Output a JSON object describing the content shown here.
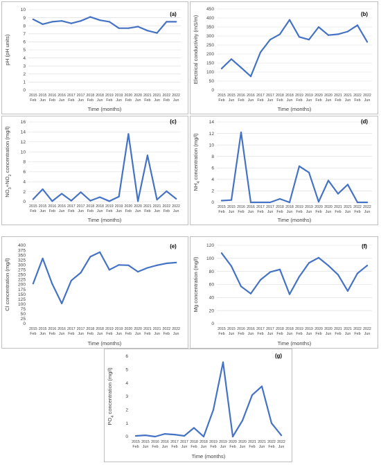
{
  "colors": {
    "series": "#4472c4",
    "grid": "#d9d9d9",
    "border": "#bfbfbf"
  },
  "time_labels": [
    [
      "2015",
      "Feb"
    ],
    [
      "2015",
      "Jun"
    ],
    [
      "2016",
      "Feb"
    ],
    [
      "2016",
      "Jun"
    ],
    [
      "2017",
      "Feb"
    ],
    [
      "2017",
      "Jun"
    ],
    [
      "2018",
      "Feb"
    ],
    [
      "2018",
      "Jun"
    ],
    [
      "2019",
      "Feb"
    ],
    [
      "2019",
      "Jun"
    ],
    [
      "2020",
      "Feb"
    ],
    [
      "2020",
      "Jun"
    ],
    [
      "2021",
      "Feb"
    ],
    [
      "2021",
      "Jun"
    ],
    [
      "2022",
      "Feb"
    ],
    [
      "2022",
      "Jun"
    ]
  ],
  "chart_data": [
    {
      "id": "a",
      "panel_label": "(a)",
      "type": "line",
      "xlabel": "Time (months)",
      "ylabel": "pH (pH units)",
      "ylim": [
        0,
        10
      ],
      "yticks": [
        0,
        1,
        2,
        3,
        4,
        5,
        6,
        7,
        8,
        9,
        10
      ],
      "grid": true,
      "x": [
        "2015 Feb",
        "2015 Jun",
        "2016 Feb",
        "2016 Jun",
        "2017 Feb",
        "2017 Jun",
        "2018 Feb",
        "2018 Jun",
        "2019 Feb",
        "2019 Jun",
        "2020 Feb",
        "2020 Jun",
        "2021 Feb",
        "2021 Jun",
        "2022 Feb",
        "2022 Jun"
      ],
      "values": [
        8.8,
        8.2,
        8.5,
        8.6,
        8.3,
        8.6,
        9.1,
        8.7,
        8.5,
        7.7,
        7.7,
        7.9,
        7.4,
        7.1,
        8.5,
        8.5
      ]
    },
    {
      "id": "b",
      "panel_label": "(b)",
      "type": "line",
      "xlabel": "Time (months)",
      "ylabel": "Electrical conductivity (mS/m)",
      "ylim": [
        0,
        450
      ],
      "yticks": [
        0,
        50,
        100,
        150,
        200,
        250,
        300,
        350,
        400,
        450
      ],
      "grid": true,
      "x": [
        "2015 Feb",
        "2015 Jun",
        "2016 Feb",
        "2016 Jun",
        "2017 Feb",
        "2017 Jun",
        "2018 Feb",
        "2018 Jun",
        "2019 Feb",
        "2019 Jun",
        "2020 Feb",
        "2020 Jun",
        "2021 Feb",
        "2021 Jun",
        "2022 Feb",
        "2022 Jun"
      ],
      "values": [
        120,
        172,
        125,
        76,
        210,
        280,
        310,
        390,
        295,
        280,
        350,
        305,
        310,
        325,
        360,
        268
      ]
    },
    {
      "id": "c",
      "panel_label": "(c)",
      "type": "line",
      "xlabel": "Time (months)",
      "ylabel": "NO3+NO2 concentration (mg/l)",
      "ylim": [
        0,
        16
      ],
      "yticks": [
        0,
        2,
        4,
        6,
        8,
        10,
        12,
        14,
        16
      ],
      "grid": true,
      "x": [
        "2015 Feb",
        "2015 Jun",
        "2016 Feb",
        "2016 Jun",
        "2017 Feb",
        "2017 Jun",
        "2018 Feb",
        "2018 Jun",
        "2019 Feb",
        "2019 Jun",
        "2020 Feb",
        "2020 Jun",
        "2021 Feb",
        "2021 Jun",
        "2022 Feb",
        "2022 Jun"
      ],
      "values": [
        0.5,
        2.5,
        0.1,
        1.6,
        0.2,
        1.9,
        0.2,
        0.9,
        0.1,
        1.0,
        13.6,
        0.1,
        9.3,
        0.4,
        2.1,
        0.6
      ]
    },
    {
      "id": "d",
      "panel_label": "(d)",
      "type": "line",
      "xlabel": "Time (months)",
      "ylabel": "NH4 concentration (mg/l)",
      "ylim": [
        0,
        14
      ],
      "yticks": [
        0,
        2,
        4,
        6,
        8,
        10,
        12,
        14
      ],
      "grid": true,
      "x": [
        "2015 Feb",
        "2015 Jun",
        "2016 Feb",
        "2016 Jun",
        "2017 Feb",
        "2017 Jun",
        "2018 Feb",
        "2018 Jun",
        "2019 Feb",
        "2019 Jun",
        "2020 Feb",
        "2020 Jun",
        "2021 Feb",
        "2021 Jun",
        "2022 Feb",
        "2022 Jun"
      ],
      "values": [
        0.3,
        0.4,
        12.2,
        0.0,
        0.0,
        0.0,
        0.6,
        0.0,
        6.3,
        5.2,
        0.1,
        3.8,
        1.5,
        3.1,
        0.0,
        0.0
      ]
    },
    {
      "id": "e",
      "panel_label": "(e)",
      "type": "line",
      "xlabel": "Time (months)",
      "ylabel": "Cl concentration (mg/l)",
      "ylim": [
        0,
        400
      ],
      "yticks": [
        0,
        25,
        50,
        75,
        100,
        125,
        150,
        175,
        200,
        225,
        250,
        275,
        300,
        325,
        350,
        375,
        400
      ],
      "grid": false,
      "x": [
        "2015 Feb",
        "2015 Jun",
        "2016 Feb",
        "2016 Jun",
        "2017 Feb",
        "2017 Jun",
        "2018 Feb",
        "2018 Jun",
        "2019 Feb",
        "2019 Jun",
        "2020 Feb",
        "2020 Jun",
        "2021 Feb",
        "2021 Jun",
        "2022 Feb",
        "2022 Jun"
      ],
      "values": [
        205,
        333,
        203,
        103,
        220,
        260,
        342,
        365,
        275,
        300,
        298,
        265,
        285,
        298,
        308,
        312
      ]
    },
    {
      "id": "f",
      "panel_label": "(f)",
      "type": "line",
      "xlabel": "Time (months)",
      "ylabel": "Mg concentration (mg/l)",
      "ylim": [
        0,
        120
      ],
      "yticks": [
        0,
        20,
        40,
        60,
        80,
        100,
        120
      ],
      "grid": true,
      "x": [
        "2015 Feb",
        "2015 Jun",
        "2016 Feb",
        "2016 Jun",
        "2017 Feb",
        "2017 Jun",
        "2018 Feb",
        "2018 Jun",
        "2019 Feb",
        "2019 Jun",
        "2020 Feb",
        "2020 Jun",
        "2021 Feb",
        "2021 Jun",
        "2022 Feb",
        "2022 Jun"
      ],
      "values": [
        108,
        88,
        57,
        46,
        67,
        79,
        83,
        45,
        72,
        93,
        101,
        89,
        75,
        50,
        77,
        89
      ]
    },
    {
      "id": "g",
      "panel_label": "(g)",
      "type": "line",
      "xlabel": "Time (months)",
      "ylabel": "PO4 concentration (mg/l)",
      "ylim": [
        0,
        6
      ],
      "yticks": [
        0,
        1,
        2,
        3,
        4,
        5,
        6
      ],
      "grid": false,
      "x": [
        "2015 Feb",
        "2015 Jun",
        "2016 Feb",
        "2016 Jun",
        "2017 Feb",
        "2017 Jun",
        "2018 Feb",
        "2018 Jun",
        "2019 Feb",
        "2019 Jun",
        "2020 Feb",
        "2020 Jun",
        "2021 Feb",
        "2021 Jun",
        "2022 Feb",
        "2022 Jun"
      ],
      "values": [
        0.05,
        0.1,
        0.0,
        0.2,
        0.15,
        0.05,
        0.65,
        0.0,
        2.0,
        5.55,
        0.0,
        1.2,
        3.1,
        3.75,
        1.0,
        0.1
      ]
    }
  ]
}
